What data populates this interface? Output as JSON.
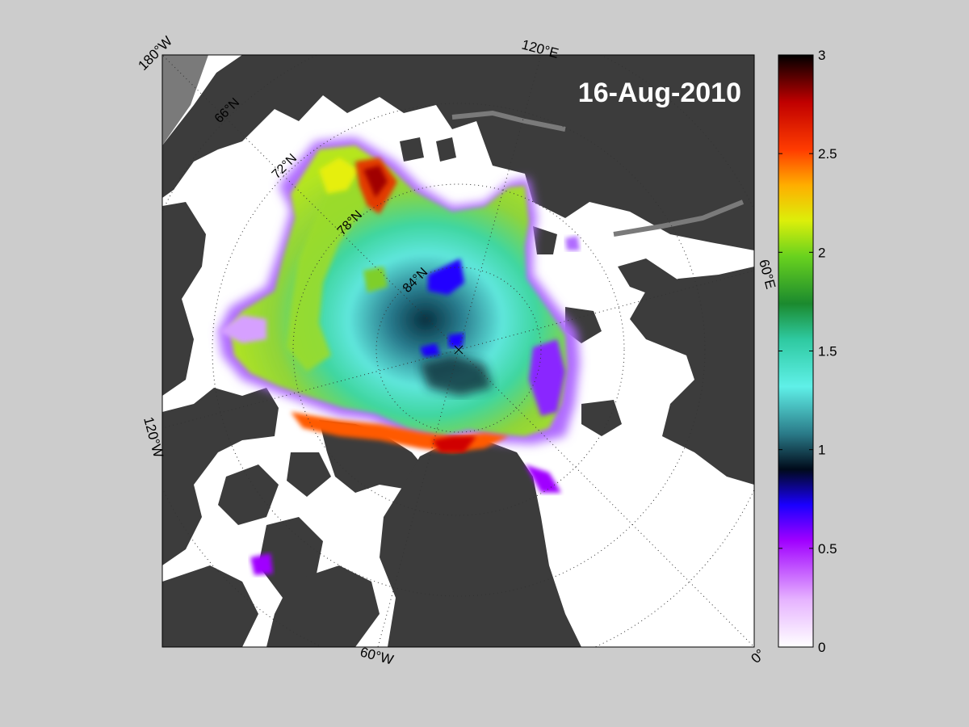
{
  "map": {
    "date": "16-Aug-2010",
    "longitude_labels": {
      "lon_180w": "180°W",
      "lon_120e": "120°E",
      "lon_60e": "60°E",
      "lon_120w": "120°W",
      "lon_60w": "60°W",
      "lon_0": "0°"
    },
    "latitude_labels": {
      "lat_66n": "66°N",
      "lat_72n": "72°N",
      "lat_78n": "78°N",
      "lat_84n": "84°N"
    },
    "colors": {
      "background": "#cccccc",
      "land": "#3c3c3c",
      "ocean": "#ffffff",
      "outside_domain": "#7a7a7a"
    }
  },
  "colorbar": {
    "min": 0,
    "max": 3,
    "ticks": [
      "0",
      "0.5",
      "1",
      "1.5",
      "2",
      "2.5",
      "3"
    ],
    "colormap": [
      "#ffffff",
      "#e6b3ff",
      "#a000ff",
      "#1a00ff",
      "#002a55",
      "#3aa0a0",
      "#5ff0e8",
      "#2ec9a0",
      "#1b8a2e",
      "#69d21e",
      "#dcef0a",
      "#ffae00",
      "#ff3c00",
      "#c00000",
      "#000000"
    ]
  }
}
